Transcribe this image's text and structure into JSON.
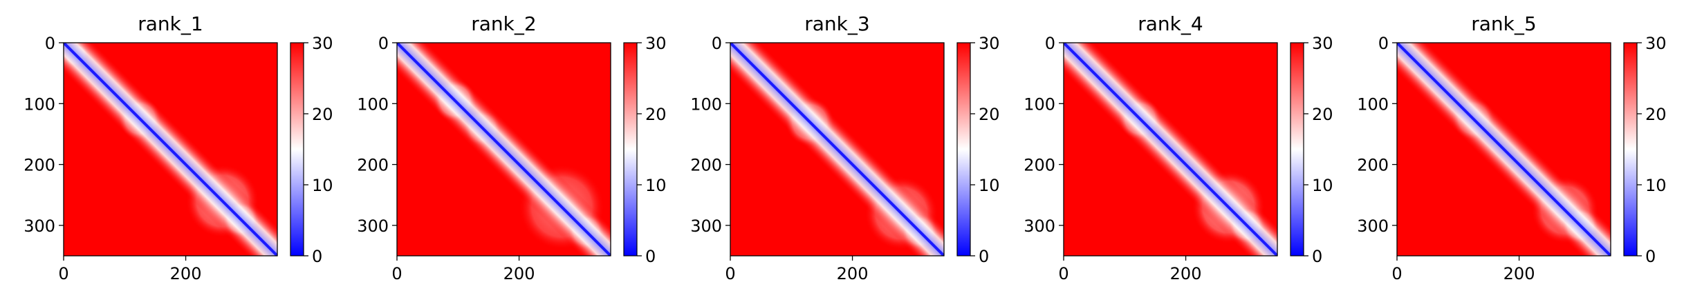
{
  "chart_data": [
    {
      "type": "heatmap",
      "title": "rank_1",
      "n": 350,
      "xlim": [
        0,
        350
      ],
      "ylim": [
        350,
        0
      ],
      "x_ticks": [
        0,
        200
      ],
      "y_ticks": [
        0,
        100,
        200,
        300
      ],
      "colorbar": {
        "min": 0,
        "max": 30,
        "ticks": [
          0,
          10,
          20,
          30
        ],
        "colors": [
          "#0000ff",
          "#ffffff",
          "#ff0000"
        ]
      },
      "low_distance_blocks": [
        {
          "start": 0,
          "end": 40,
          "level": 0.7
        },
        {
          "start": 90,
          "end": 160,
          "level": 0.75
        },
        {
          "start": 200,
          "end": 320,
          "level": 0.6
        },
        {
          "start": 260,
          "end": 320,
          "level": 0.85
        }
      ]
    },
    {
      "type": "heatmap",
      "title": "rank_2",
      "n": 350,
      "xlim": [
        0,
        350
      ],
      "ylim": [
        350,
        0
      ],
      "x_ticks": [
        0,
        200
      ],
      "y_ticks": [
        0,
        100,
        200,
        300
      ],
      "colorbar": {
        "min": 0,
        "max": 30,
        "ticks": [
          0,
          10,
          20,
          30
        ],
        "colors": [
          "#0000ff",
          "#ffffff",
          "#ff0000"
        ]
      },
      "low_distance_blocks": [
        {
          "start": 60,
          "end": 130,
          "level": 0.95
        },
        {
          "start": 110,
          "end": 170,
          "level": 0.55
        },
        {
          "start": 200,
          "end": 340,
          "level": 0.5
        },
        {
          "start": 280,
          "end": 340,
          "level": 0.7
        }
      ]
    },
    {
      "type": "heatmap",
      "title": "rank_3",
      "n": 350,
      "xlim": [
        0,
        350
      ],
      "ylim": [
        350,
        0
      ],
      "x_ticks": [
        0,
        200
      ],
      "y_ticks": [
        0,
        100,
        200,
        300
      ],
      "colorbar": {
        "min": 0,
        "max": 30,
        "ticks": [
          0,
          10,
          20,
          30
        ],
        "colors": [
          "#0000ff",
          "#ffffff",
          "#ff0000"
        ]
      },
      "low_distance_blocks": [
        {
          "start": 90,
          "end": 170,
          "level": 0.8
        },
        {
          "start": 220,
          "end": 340,
          "level": 0.55
        },
        {
          "start": 280,
          "end": 340,
          "level": 0.75
        }
      ]
    },
    {
      "type": "heatmap",
      "title": "rank_4",
      "n": 350,
      "xlim": [
        0,
        350
      ],
      "ylim": [
        350,
        0
      ],
      "x_ticks": [
        0,
        200
      ],
      "y_ticks": [
        0,
        100,
        200,
        300
      ],
      "colorbar": {
        "min": 0,
        "max": 30,
        "ticks": [
          0,
          10,
          20,
          30
        ],
        "colors": [
          "#0000ff",
          "#ffffff",
          "#ff0000"
        ]
      },
      "low_distance_blocks": [
        {
          "start": 90,
          "end": 160,
          "level": 0.8
        },
        {
          "start": 210,
          "end": 330,
          "level": 0.65
        },
        {
          "start": 270,
          "end": 330,
          "level": 0.9
        }
      ]
    },
    {
      "type": "heatmap",
      "title": "rank_5",
      "n": 350,
      "xlim": [
        0,
        350
      ],
      "ylim": [
        350,
        0
      ],
      "x_ticks": [
        0,
        200
      ],
      "y_ticks": [
        0,
        100,
        200,
        300
      ],
      "colorbar": {
        "min": 0,
        "max": 30,
        "ticks": [
          0,
          10,
          20,
          30
        ],
        "colors": [
          "#0000ff",
          "#ffffff",
          "#ff0000"
        ]
      },
      "low_distance_blocks": [
        {
          "start": 90,
          "end": 160,
          "level": 0.6
        },
        {
          "start": 220,
          "end": 330,
          "level": 0.6
        },
        {
          "start": 270,
          "end": 330,
          "level": 0.85
        }
      ]
    }
  ]
}
